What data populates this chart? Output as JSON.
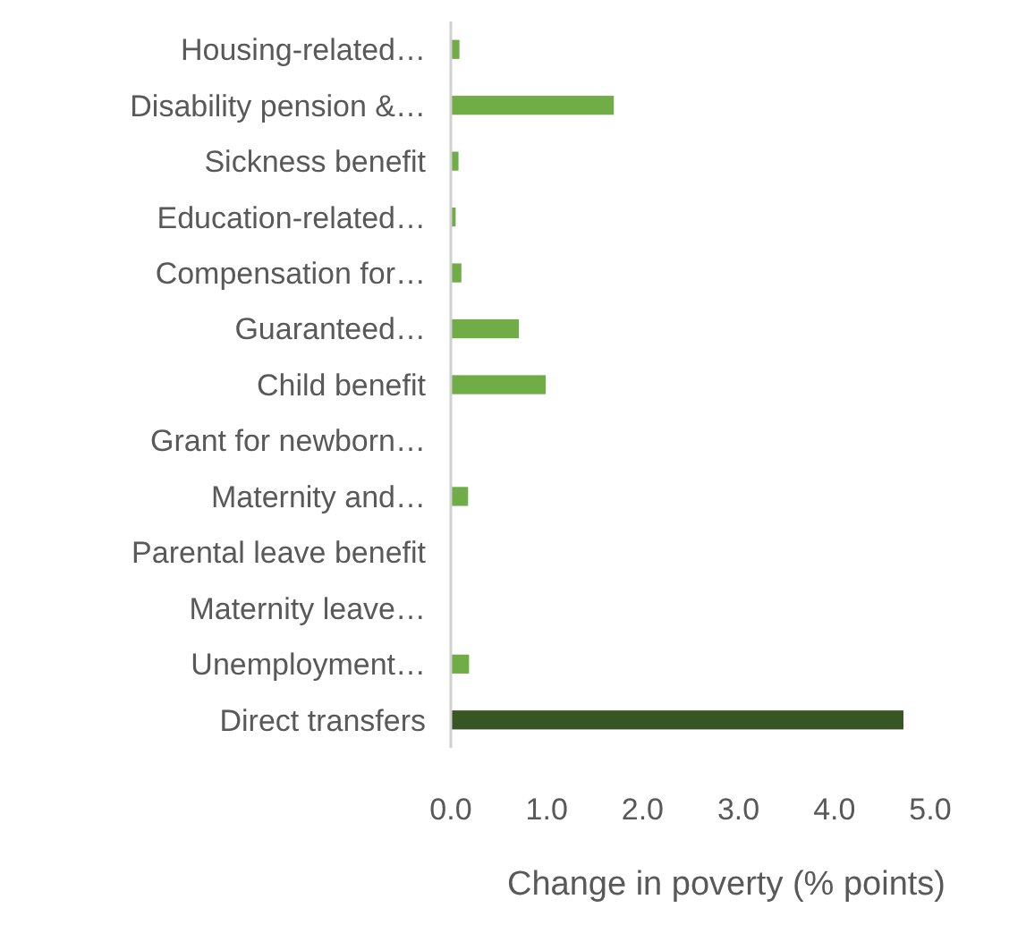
{
  "chart_data": {
    "type": "bar",
    "orientation": "horizontal",
    "categories": [
      "Housing-related…",
      "Disability pension &…",
      "Sickness benefit",
      "Education-related…",
      "Compensation for…",
      "Guaranteed…",
      "Child benefit",
      "Grant for newborn…",
      "Maternity and…",
      "Parental leave benefit",
      "Maternity leave…",
      "Unemployment…",
      "Direct transfers"
    ],
    "values": [
      0.09,
      1.7,
      0.08,
      0.05,
      0.11,
      0.71,
      0.99,
      0,
      0.18,
      0,
      0,
      0.19,
      4.72
    ],
    "colors": [
      "#70ad47",
      "#70ad47",
      "#70ad47",
      "#70ad47",
      "#70ad47",
      "#70ad47",
      "#70ad47",
      "#70ad47",
      "#70ad47",
      "#70ad47",
      "#70ad47",
      "#70ad47",
      "#375623"
    ],
    "xlim": [
      0,
      5
    ],
    "xticks": [
      {
        "value": 0,
        "label": "0.0"
      },
      {
        "value": 1,
        "label": "1.0"
      },
      {
        "value": 2,
        "label": "2.0"
      },
      {
        "value": 3,
        "label": "3.0"
      },
      {
        "value": 4,
        "label": "4.0"
      },
      {
        "value": 5,
        "label": "5.0"
      }
    ],
    "xlabel": "Change in poverty (% points)",
    "grid": false
  }
}
